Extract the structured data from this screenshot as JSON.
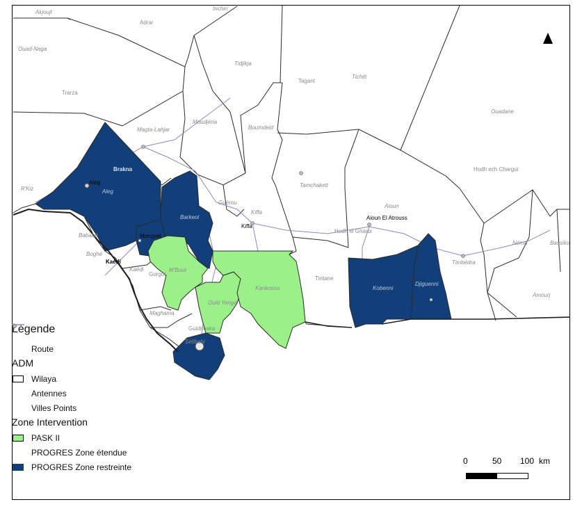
{
  "colors": {
    "pask": "#9cf08a",
    "restreinte": "#123f7a",
    "border": "#2b2b2b",
    "route": "#8a8ac8"
  },
  "north_arrow": "north-arrow-icon",
  "labels": {
    "akjoujt": "Akjoujt",
    "inchiri": "Inchiri",
    "adrar": "Adrar",
    "ouad_naga": "Ouad-Naga",
    "tidjikja": "Tidjikja",
    "tagant": "Tagant",
    "tichitt": "Tichitt",
    "ouadane": "Ouadane",
    "trarza": "Trarza",
    "magta_lahjar": "Magta-Lahjar",
    "moudjeria": "Moudjéria",
    "boumdeid": "Boumdeid",
    "brakna": "Brakna",
    "aleg_city": "Aleg",
    "aleg_dept": "Aleg",
    "rkiz": "R'Kiz",
    "tamchakett": "Tamchakett",
    "hodh_ech_chargui": "Hodh ech Chargui",
    "guerou": "Guérou",
    "kiffa_dept": "Kiffa",
    "kiffa_city": "Kiffa",
    "barkeol": "Barkeol",
    "aioun": "Aioun",
    "aioun_city": "Aioun El Atrouss",
    "hodh_gharbi": "Hodh el Gharbi",
    "nema": "Néma",
    "bassikounou": "Bassikou",
    "boghe": "Boghé",
    "bababe": "Bababé",
    "monguel": "Monguel",
    "kaedi_city": "Kaédi",
    "kaedi": "Kaédi",
    "mbout": "M'Bout",
    "gorgol": "Gorgol",
    "tintane": "Tintane",
    "timbedra": "Timbédra",
    "kankossa": "Kankossa",
    "ould_yenge": "Ould Yengé",
    "kobenni": "Kobenni",
    "djiguenni": "Djiguenni",
    "amourj": "Amourj",
    "maghama": "Maghama",
    "guidimaka": "Guidimaka",
    "selibabi": "Sélibabi"
  },
  "legend": {
    "title": "Légende",
    "route": "Route",
    "adm": "ADM",
    "wilaya": "Wilaya",
    "antennes": "Antennes",
    "villes_points": "Villes Points",
    "zone_intervention": "Zone Intervention",
    "pask": "PASK II",
    "etendue": "PROGRES Zone étendue",
    "restreinte": "PROGRES Zone restreinte"
  },
  "scale_bar": {
    "ticks": [
      "0",
      "50",
      "100"
    ],
    "unit": "km"
  }
}
